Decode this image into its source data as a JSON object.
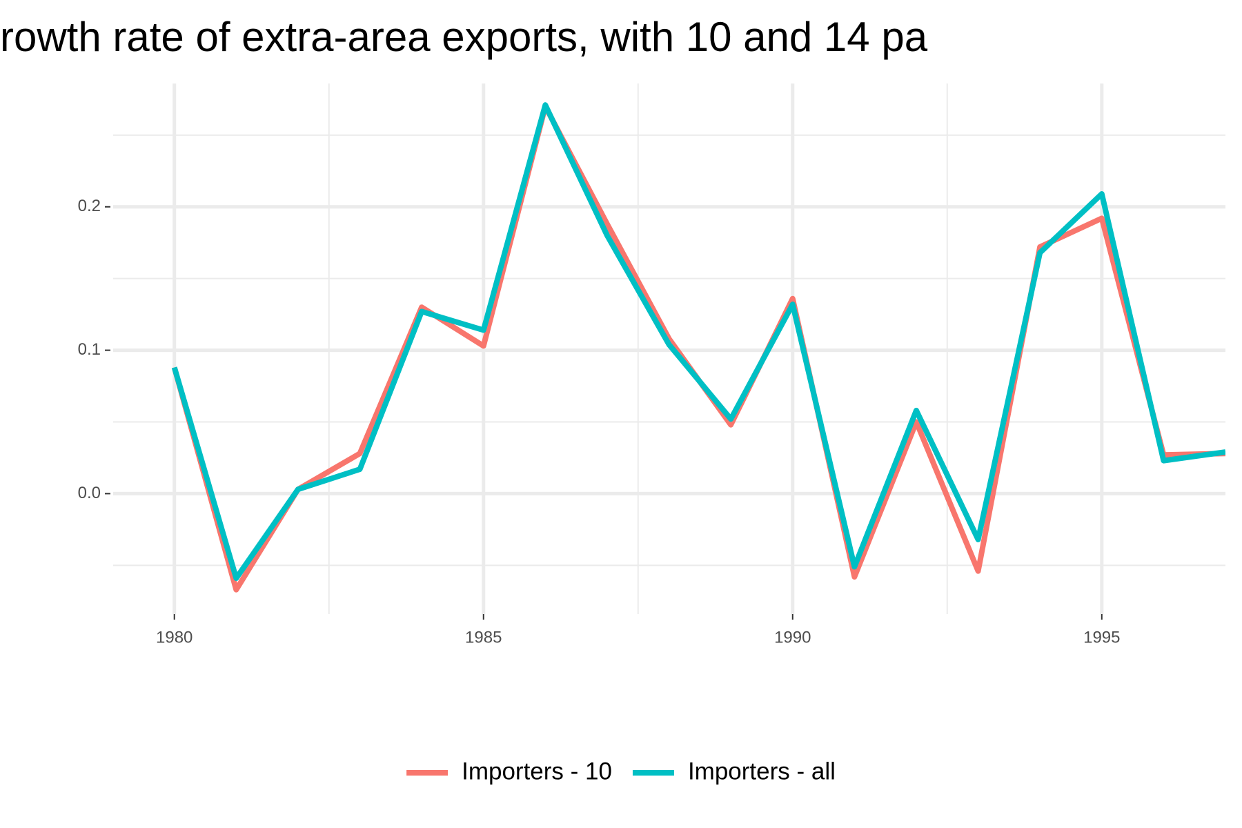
{
  "chart_data": {
    "type": "line",
    "title": "rowth rate of extra-area exports, with 10 and 14 pa",
    "x": [
      1980,
      1981,
      1982,
      1983,
      1984,
      1985,
      1986,
      1987,
      1988,
      1989,
      1990,
      1991,
      1992,
      1993,
      1994,
      1995,
      1996,
      1997
    ],
    "series": [
      {
        "name": "Importers - 10",
        "color": "#f8766d",
        "values": [
          0.088,
          -0.067,
          0.003,
          0.028,
          0.13,
          0.103,
          0.27,
          0.188,
          0.108,
          0.048,
          0.136,
          -0.058,
          0.05,
          -0.054,
          0.172,
          0.192,
          0.027,
          0.028
        ]
      },
      {
        "name": "Importers - all",
        "color": "#00bfc4",
        "values": [
          0.088,
          -0.059,
          0.003,
          0.017,
          0.127,
          0.114,
          0.271,
          0.18,
          0.104,
          0.052,
          0.132,
          -0.051,
          0.058,
          -0.032,
          0.168,
          0.209,
          0.023,
          0.029
        ]
      }
    ],
    "xlim": [
      1979.01,
      1997.0
    ],
    "ylim": [
      -0.084,
      0.286
    ],
    "xticks": [
      1980,
      1985,
      1990,
      1995
    ],
    "yticks": [
      {
        "value": 0,
        "label": "0.0"
      },
      0.1,
      0.2
    ],
    "x_minor_ticks": [
      1982.5,
      1987.5,
      1992.5
    ],
    "y_minor_ticks": [
      -0.05,
      0.05,
      0.15,
      0.25
    ],
    "grid": true,
    "legend": "bottom"
  }
}
